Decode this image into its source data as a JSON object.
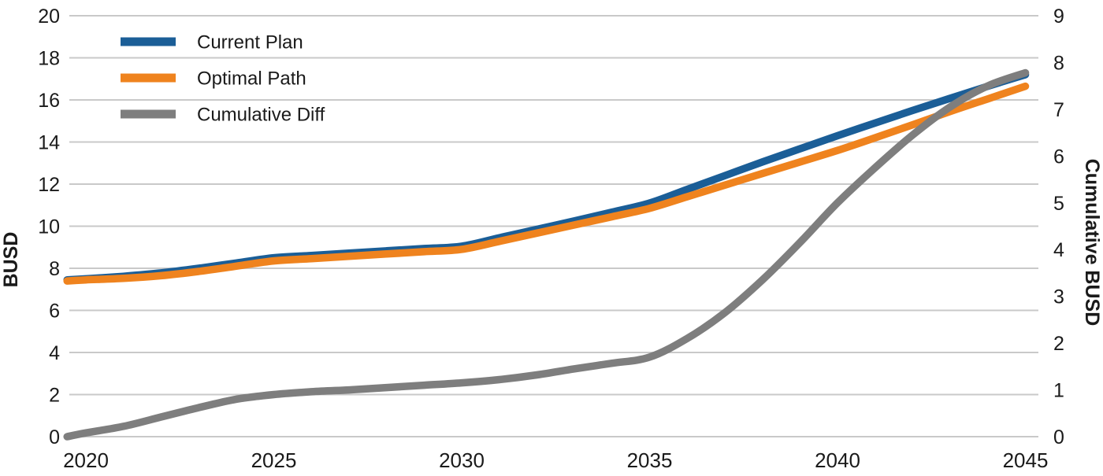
{
  "chart_data": {
    "type": "line",
    "title": "",
    "x": [
      2019.5,
      2020,
      2021,
      2022,
      2023,
      2024,
      2025,
      2026,
      2027,
      2028,
      2029,
      2030,
      2031,
      2032,
      2033,
      2034,
      2035,
      2036,
      2037,
      2038,
      2039,
      2040,
      2041,
      2042,
      2043,
      2044,
      2045
    ],
    "x_ticks": [
      2020,
      2025,
      2030,
      2035,
      2040,
      2045
    ],
    "left_axis": {
      "label": "BUSD",
      "range": [
        0,
        20
      ],
      "ticks": [
        0,
        2,
        4,
        6,
        8,
        10,
        12,
        14,
        16,
        18,
        20
      ]
    },
    "right_axis": {
      "label": "Cumulative BUSD",
      "range": [
        0,
        9
      ],
      "ticks": [
        0,
        1,
        2,
        3,
        4,
        5,
        6,
        7,
        8,
        9
      ]
    },
    "grid": "horizontal",
    "legend_position": "top-left",
    "series": [
      {
        "name": "Current Plan",
        "axis": "left",
        "color": "#1b5e97",
        "values": [
          7.45,
          7.5,
          7.62,
          7.78,
          8.0,
          8.25,
          8.5,
          8.61,
          8.72,
          8.83,
          8.94,
          9.05,
          9.45,
          9.85,
          10.25,
          10.67,
          11.1,
          11.75,
          12.4,
          13.05,
          13.68,
          14.3,
          14.9,
          15.5,
          16.08,
          16.65,
          17.2
        ]
      },
      {
        "name": "Optimal Path",
        "axis": "left",
        "color": "#ef831e",
        "values": [
          7.4,
          7.45,
          7.52,
          7.65,
          7.85,
          8.1,
          8.35,
          8.46,
          8.57,
          8.68,
          8.79,
          8.9,
          9.28,
          9.67,
          10.06,
          10.45,
          10.85,
          11.4,
          11.95,
          12.5,
          13.05,
          13.6,
          14.2,
          14.82,
          15.45,
          16.05,
          16.65
        ]
      },
      {
        "name": "Cumulative Diff",
        "axis": "right",
        "color": "#7e7e7e",
        "values": [
          0.0,
          0.08,
          0.22,
          0.42,
          0.62,
          0.8,
          0.9,
          0.96,
          1.0,
          1.05,
          1.1,
          1.15,
          1.22,
          1.32,
          1.45,
          1.57,
          1.7,
          2.1,
          2.65,
          3.35,
          4.15,
          5.0,
          5.75,
          6.45,
          7.05,
          7.5,
          7.78
        ]
      }
    ]
  },
  "colors": {
    "grid": "#c9c9c9",
    "text": "#1a1a1a",
    "background": "#ffffff"
  }
}
